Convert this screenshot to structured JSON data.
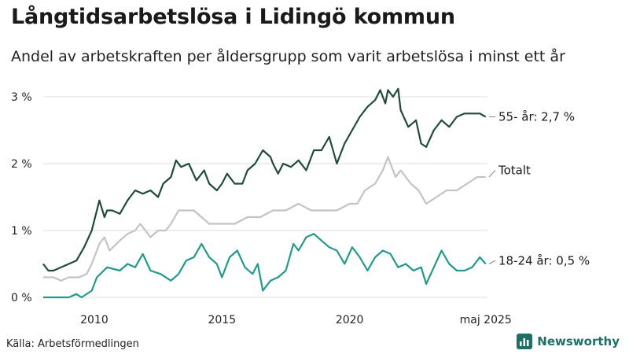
{
  "header": {
    "title": "Långtidsarbetslösa i Lidingö kommun",
    "subtitle": "Andel av arbetskraften per åldersgrupp som varit arbetslösa i minst ett år"
  },
  "footer": {
    "source": "Källa: Arbetsförmedlingen",
    "brand": "Newsworthy"
  },
  "colors": {
    "series_55": "#1f4a40",
    "series_total": "#c3c1ca",
    "series_1824": "#1f9b8a",
    "grid": "#dddddd",
    "brand": "#1f6f66"
  },
  "chart_data": {
    "type": "line",
    "ylim": [
      0,
      3.2
    ],
    "xlim": [
      2008.0,
      2025.4
    ],
    "y_ticks": [
      {
        "value": 0,
        "label": "0 %"
      },
      {
        "value": 1,
        "label": "1 %"
      },
      {
        "value": 2,
        "label": "2 %"
      },
      {
        "value": 3,
        "label": "3 %"
      }
    ],
    "x_ticks": [
      {
        "value": 2010,
        "label": "2010"
      },
      {
        "value": 2015,
        "label": "2015"
      },
      {
        "value": 2020,
        "label": "2020"
      },
      {
        "value": 2025.33,
        "label": "maj 2025"
      }
    ],
    "grid": true,
    "series": [
      {
        "key": "55",
        "label": "55- år: 2,7 %",
        "x": [
          2008.0,
          2008.2,
          2008.4,
          2008.7,
          2009.0,
          2009.3,
          2009.6,
          2009.9,
          2010.2,
          2010.4,
          2010.5,
          2010.7,
          2011.0,
          2011.3,
          2011.6,
          2011.9,
          2012.2,
          2012.5,
          2012.7,
          2013.0,
          2013.2,
          2013.4,
          2013.7,
          2014.0,
          2014.3,
          2014.5,
          2014.8,
          2015.0,
          2015.2,
          2015.5,
          2015.8,
          2016.0,
          2016.3,
          2016.6,
          2016.9,
          2017.0,
          2017.2,
          2017.4,
          2017.7,
          2018.0,
          2018.3,
          2018.6,
          2018.9,
          2019.2,
          2019.5,
          2019.8,
          2020.1,
          2020.4,
          2020.7,
          2021.0,
          2021.2,
          2021.4,
          2021.5,
          2021.7,
          2021.9,
          2022.0,
          2022.3,
          2022.6,
          2022.8,
          2023.0,
          2023.3,
          2023.6,
          2023.9,
          2024.2,
          2024.5,
          2024.8,
          2025.1,
          2025.33
        ],
        "y": [
          0.5,
          0.4,
          0.4,
          0.45,
          0.5,
          0.55,
          0.75,
          1.0,
          1.45,
          1.2,
          1.3,
          1.3,
          1.25,
          1.45,
          1.6,
          1.55,
          1.6,
          1.5,
          1.7,
          1.8,
          2.05,
          1.95,
          2.0,
          1.75,
          1.9,
          1.7,
          1.6,
          1.7,
          1.85,
          1.7,
          1.7,
          1.9,
          2.0,
          2.2,
          2.1,
          2.0,
          1.85,
          2.0,
          1.95,
          2.05,
          1.9,
          2.2,
          2.2,
          2.4,
          2.0,
          2.3,
          2.5,
          2.7,
          2.85,
          2.95,
          3.1,
          2.9,
          3.1,
          3.0,
          3.12,
          2.8,
          2.55,
          2.65,
          2.3,
          2.25,
          2.5,
          2.65,
          2.55,
          2.7,
          2.75,
          2.75,
          2.75,
          2.7
        ]
      },
      {
        "key": "total",
        "label": "Totalt",
        "x": [
          2008.0,
          2008.4,
          2008.7,
          2009.0,
          2009.4,
          2009.7,
          2009.9,
          2010.2,
          2010.4,
          2010.6,
          2011.0,
          2011.3,
          2011.6,
          2011.8,
          2012.2,
          2012.5,
          2012.8,
          2013.0,
          2013.3,
          2013.6,
          2013.9,
          2014.2,
          2014.5,
          2014.8,
          2015.0,
          2015.5,
          2016.0,
          2016.5,
          2017.0,
          2017.5,
          2018.0,
          2018.5,
          2019.0,
          2019.5,
          2020.0,
          2020.3,
          2020.6,
          2021.0,
          2021.3,
          2021.5,
          2021.8,
          2022.0,
          2022.4,
          2022.7,
          2023.0,
          2023.4,
          2023.8,
          2024.2,
          2024.6,
          2025.0,
          2025.33
        ],
        "y": [
          0.3,
          0.3,
          0.25,
          0.3,
          0.3,
          0.35,
          0.5,
          0.8,
          0.9,
          0.7,
          0.85,
          0.95,
          1.0,
          1.1,
          0.9,
          1.0,
          1.0,
          1.1,
          1.3,
          1.3,
          1.3,
          1.2,
          1.1,
          1.1,
          1.1,
          1.1,
          1.2,
          1.2,
          1.3,
          1.3,
          1.4,
          1.3,
          1.3,
          1.3,
          1.4,
          1.4,
          1.6,
          1.7,
          1.9,
          2.1,
          1.8,
          1.9,
          1.7,
          1.6,
          1.4,
          1.5,
          1.6,
          1.6,
          1.7,
          1.8,
          1.8
        ]
      },
      {
        "key": "1824",
        "label": "18-24 år: 0,5 %",
        "x": [
          2008.0,
          2008.5,
          2009.0,
          2009.3,
          2009.5,
          2009.9,
          2010.1,
          2010.5,
          2011.0,
          2011.3,
          2011.6,
          2011.9,
          2012.2,
          2012.6,
          2013.0,
          2013.3,
          2013.6,
          2013.9,
          2014.2,
          2014.5,
          2014.8,
          2015.0,
          2015.3,
          2015.6,
          2015.9,
          2016.2,
          2016.4,
          2016.6,
          2016.9,
          2017.2,
          2017.5,
          2017.8,
          2018.0,
          2018.3,
          2018.6,
          2018.9,
          2019.2,
          2019.5,
          2019.8,
          2020.1,
          2020.4,
          2020.7,
          2021.0,
          2021.3,
          2021.6,
          2021.9,
          2022.2,
          2022.5,
          2022.8,
          2023.0,
          2023.3,
          2023.6,
          2023.9,
          2024.2,
          2024.5,
          2024.8,
          2025.1,
          2025.33
        ],
        "y": [
          0.0,
          0.0,
          0.0,
          0.05,
          0.0,
          0.1,
          0.3,
          0.45,
          0.4,
          0.5,
          0.45,
          0.65,
          0.4,
          0.35,
          0.25,
          0.35,
          0.55,
          0.6,
          0.8,
          0.6,
          0.5,
          0.3,
          0.6,
          0.7,
          0.45,
          0.35,
          0.5,
          0.1,
          0.25,
          0.3,
          0.4,
          0.8,
          0.7,
          0.9,
          0.95,
          0.85,
          0.75,
          0.7,
          0.5,
          0.75,
          0.6,
          0.4,
          0.6,
          0.7,
          0.65,
          0.45,
          0.5,
          0.4,
          0.45,
          0.2,
          0.45,
          0.7,
          0.5,
          0.4,
          0.4,
          0.45,
          0.6,
          0.5
        ]
      }
    ]
  }
}
